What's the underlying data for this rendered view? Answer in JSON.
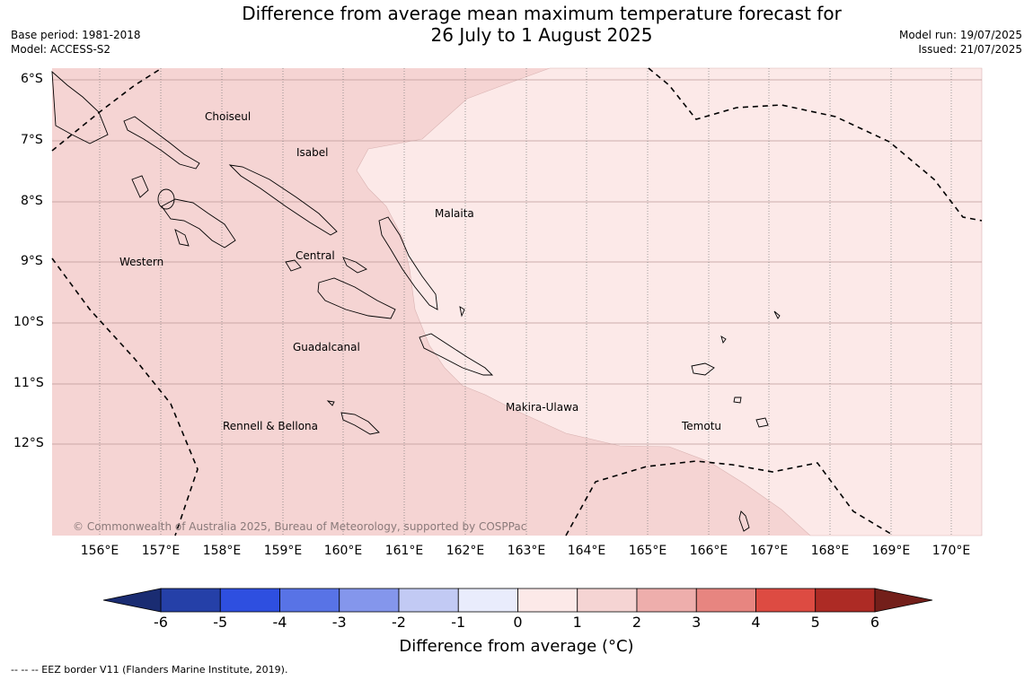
{
  "title": {
    "line1": "Difference from average mean maximum temperature forecast for",
    "line2": "26 July to 1 August 2025"
  },
  "meta_left": {
    "base_period": "Base period: 1981-2018",
    "model": "Model: ACCESS-S2"
  },
  "meta_right": {
    "model_run": "Model run: 19/07/2025",
    "issued": "Issued: 21/07/2025"
  },
  "latitudes": [
    "6°S",
    "7°S",
    "8°S",
    "9°S",
    "10°S",
    "11°S",
    "12°S"
  ],
  "longitudes": [
    "156°E",
    "157°E",
    "158°E",
    "159°E",
    "160°E",
    "161°E",
    "162°E",
    "163°E",
    "164°E",
    "165°E",
    "166°E",
    "167°E",
    "168°E",
    "169°E",
    "170°E"
  ],
  "regions": [
    {
      "name": "Choiseul"
    },
    {
      "name": "Isabel"
    },
    {
      "name": "Malaita"
    },
    {
      "name": "Western"
    },
    {
      "name": "Central"
    },
    {
      "name": "Guadalcanal"
    },
    {
      "name": "Makira-Ulawa"
    },
    {
      "name": "Temotu"
    },
    {
      "name": "Rennell & Bellona"
    }
  ],
  "copyright": "© Commonwealth of Australia 2025, Bureau of Meteorology, supported by COSPPac",
  "colorbar": {
    "title": "Difference from average (°C)",
    "ticks": [
      "-6",
      "-5",
      "-4",
      "-3",
      "-2",
      "-1",
      "0",
      "1",
      "2",
      "3",
      "4",
      "5",
      "6"
    ],
    "colors": [
      "#2540a8",
      "#2e4fe0",
      "#5873e6",
      "#8496ec",
      "#c2caf4",
      "#e9ecfc",
      "#fce9e8",
      "#f5d4d3",
      "#eeaeac",
      "#e78580",
      "#dd4b42",
      "#ad2b25"
    ],
    "under_color": "#1a2c72",
    "over_color": "#731f1a"
  },
  "footnote": "--  --  -- EEZ border V11 (Flanders Marine Institute, 2019)."
}
